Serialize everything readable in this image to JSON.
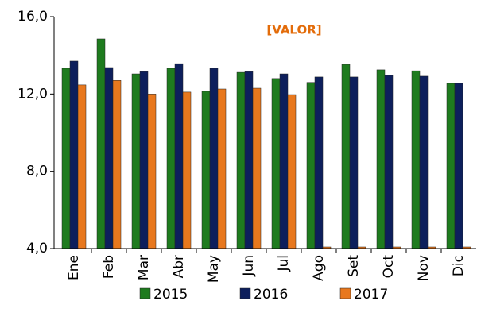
{
  "chart_data": {
    "type": "bar",
    "annotation": "[VALOR]",
    "annotation_color": "#e36c0a",
    "categories": [
      "Ene",
      "Feb",
      "Mar",
      "Abr",
      "May",
      "Jun",
      "Jul",
      "Ago",
      "Set",
      "Oct",
      "Nov",
      "Dic"
    ],
    "series": [
      {
        "name": "2015",
        "color": "#1e7b1e",
        "values": [
          13.33,
          14.85,
          13.04,
          13.33,
          12.14,
          13.12,
          12.8,
          12.6,
          13.53,
          13.25,
          13.2,
          12.55
        ]
      },
      {
        "name": "2016",
        "color": "#0d1f5c",
        "values": [
          13.7,
          13.37,
          13.16,
          13.57,
          13.33,
          13.16,
          13.04,
          12.88,
          12.88,
          12.96,
          12.92,
          12.55
        ]
      },
      {
        "name": "2017",
        "color": "#e8781e",
        "values": [
          12.47,
          12.7,
          12.0,
          12.1,
          12.26,
          12.3,
          11.97,
          4.0,
          4.0,
          4.0,
          4.0,
          4.0
        ]
      }
    ],
    "ylim": [
      4.0,
      16.0
    ],
    "yticks": [
      {
        "value": 4.0,
        "label": "4,0"
      },
      {
        "value": 8.0,
        "label": "8,0"
      },
      {
        "value": 12.0,
        "label": "12,0"
      },
      {
        "value": 16.0,
        "label": "16,0"
      }
    ],
    "legend": "bottom"
  }
}
